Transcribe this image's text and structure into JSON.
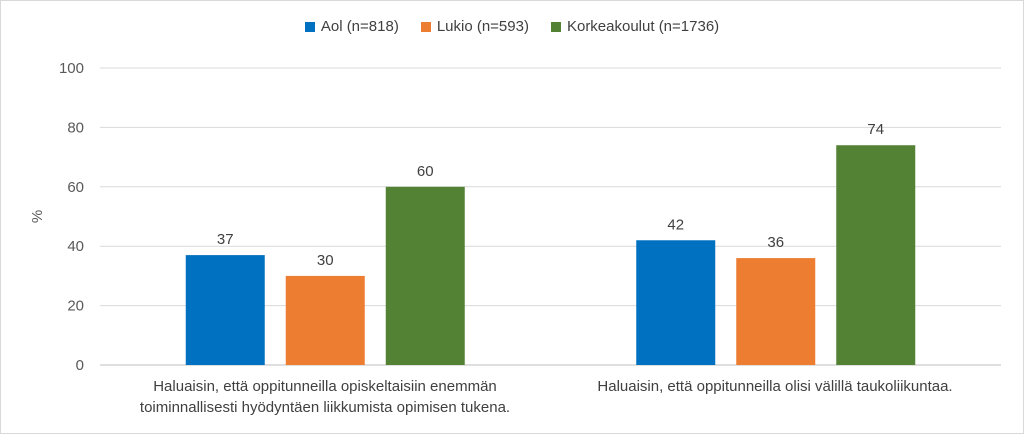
{
  "chart_data": {
    "type": "bar",
    "ylabel": "%",
    "ylim": [
      0,
      100
    ],
    "yticks": [
      0,
      20,
      40,
      60,
      80,
      100
    ],
    "grid": true,
    "legend_position": "top",
    "categories": [
      "Haluaisin, että oppitunneilla opiskeltaisiin enemmän\ntoiminnallisesti hyödyntäen liikkumista opimisen tukena.",
      "Haluaisin, että oppitunneilla olisi välillä taukoliikuntaa."
    ],
    "series": [
      {
        "name": "Aol (n=818)",
        "color": "#0070c0",
        "values": [
          37,
          42
        ]
      },
      {
        "name": "Lukio (n=593)",
        "color": "#ed7d31",
        "values": [
          30,
          36
        ]
      },
      {
        "name": "Korkeakoulut (n=1736)",
        "color": "#548235",
        "values": [
          60,
          74
        ]
      }
    ]
  }
}
